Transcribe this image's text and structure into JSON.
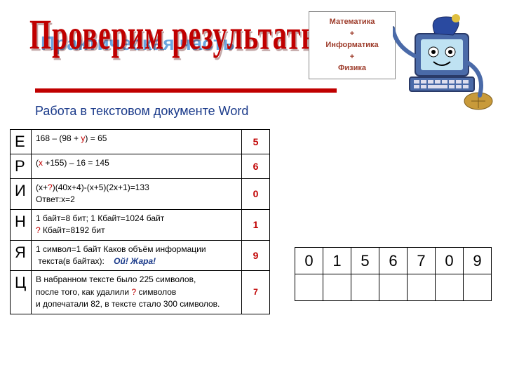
{
  "title_main": "Проверим результаты!",
  "title_back": "Практическая часть",
  "subjects_box": {
    "line1": "Математика",
    "plus1": "+",
    "line2": "Информатика",
    "plus2": "+",
    "line3": "Физика",
    "color": "#9d3b2a"
  },
  "subtitle": "Работа в текстовом документе Word",
  "rows": [
    {
      "letter": "Е",
      "desc_html": "168 – (98 + <span class='red'>у</span>) = 65",
      "answer": "5"
    },
    {
      "letter": "Р",
      "desc_html": "(<span class='red'>х</span> +155) – 16 = 145",
      "answer": "6"
    },
    {
      "letter": "И",
      "desc_html": "(х+<span class='red'>?</span>)(40х+4)-(х+5)(2х+1)=133<br>Ответ:х=2",
      "answer": "0"
    },
    {
      "letter": "Н",
      "desc_html": "1 байт=8 бит; 1 Кбайт=1024 байт<br><span class='red'>?</span> Кбайт=8192 бит",
      "answer": "1"
    },
    {
      "letter": "Я",
      "desc_html": "1 символ=1 байт Каков объём информации<br>&nbsp;текста(в байтах):&nbsp;&nbsp;&nbsp;&nbsp;<span class='bluei'>Ой! Жара!</span>",
      "answer": "9"
    },
    {
      "letter": "Ц",
      "desc_html": "В набранном тексте было 225 символов,<br>после того, как удалили <span class='red'>?</span> символов<br>и допечатали 82, в тексте стало 300 символов.",
      "answer": "7",
      "ans_small": true
    }
  ],
  "digits": [
    "0",
    "1",
    "5",
    "6",
    "7",
    "0",
    "9"
  ],
  "colors": {
    "accent_red": "#c00000",
    "accent_blue": "#1a3a8a",
    "title_back_blue": "#6aa6e0"
  }
}
